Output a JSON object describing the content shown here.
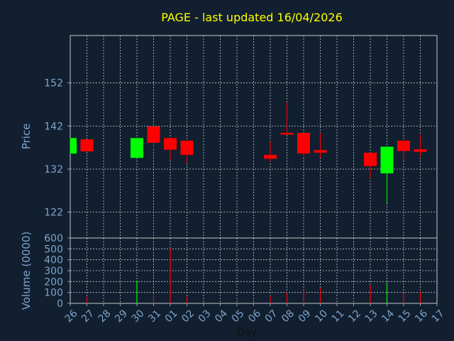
{
  "title": "PAGE - last updated 16/04/2026",
  "colors": {
    "background": "#111f30",
    "title": "#ffff00",
    "axis_text": "#7fa3cc",
    "grid": "#c8c8c8",
    "frame": "#c8c8c8",
    "up": "#00ff00",
    "down": "#ff0000"
  },
  "chart_data": [
    {
      "type": "candlestick",
      "ylabel": "Price",
      "ylim": [
        116,
        163
      ],
      "yticks": [
        122,
        132,
        142,
        152
      ],
      "grid": true,
      "x": [
        "26",
        "27",
        "28",
        "29",
        "30",
        "31",
        "01",
        "02",
        "03",
        "04",
        "05",
        "06",
        "07",
        "08",
        "09",
        "10",
        "11",
        "12",
        "13",
        "14",
        "15",
        "16",
        "17"
      ],
      "candles": [
        {
          "day": "26",
          "open": 135.6,
          "close": 139.2,
          "high": 139.2,
          "low": 135.6
        },
        {
          "day": "27",
          "open": 138.9,
          "close": 136.1,
          "high": 138.9,
          "low": 136.1
        },
        {
          "day": "30",
          "open": 134.6,
          "close": 139.2,
          "high": 139.2,
          "low": 134.6
        },
        {
          "day": "31",
          "open": 141.9,
          "close": 138.1,
          "high": 141.9,
          "low": 136.8
        },
        {
          "day": "01",
          "open": 139.2,
          "close": 136.5,
          "high": 139.2,
          "low": 134.0
        },
        {
          "day": "02",
          "open": 138.6,
          "close": 135.3,
          "high": 138.6,
          "low": 133.3
        },
        {
          "day": "07",
          "open": 135.3,
          "close": 134.4,
          "high": 138.4,
          "low": 133.8
        },
        {
          "day": "08",
          "open": 140.4,
          "close": 140.0,
          "high": 147.4,
          "low": 140.0
        },
        {
          "day": "09",
          "open": 140.4,
          "close": 135.6,
          "high": 140.4,
          "low": 134.8
        },
        {
          "day": "10",
          "open": 136.4,
          "close": 135.8,
          "high": 140.4,
          "low": 134.6
        },
        {
          "day": "13",
          "open": 135.8,
          "close": 132.7,
          "high": 135.8,
          "low": 129.8
        },
        {
          "day": "14",
          "open": 131.0,
          "close": 137.2,
          "high": 137.2,
          "low": 124.0
        },
        {
          "day": "15",
          "open": 138.6,
          "close": 136.2,
          "high": 138.6,
          "low": 134.0
        },
        {
          "day": "16",
          "open": 136.6,
          "close": 136.0,
          "high": 140.0,
          "low": 134.8
        }
      ]
    },
    {
      "type": "bar",
      "ylabel": "Volume (0000)",
      "xlabel": "Day",
      "ylim": [
        0,
        600
      ],
      "yticks": [
        0,
        100,
        200,
        300,
        400,
        500,
        600
      ],
      "x": [
        "26",
        "27",
        "28",
        "29",
        "30",
        "31",
        "01",
        "02",
        "03",
        "04",
        "05",
        "06",
        "07",
        "08",
        "09",
        "10",
        "11",
        "12",
        "13",
        "14",
        "15",
        "16",
        "17"
      ],
      "bars": [
        {
          "day": "27",
          "value": 60,
          "dir": "down"
        },
        {
          "day": "30",
          "value": 210,
          "dir": "up"
        },
        {
          "day": "31",
          "value": 90,
          "dir": "down"
        },
        {
          "day": "01",
          "value": 510,
          "dir": "down"
        },
        {
          "day": "02",
          "value": 60,
          "dir": "down"
        },
        {
          "day": "07",
          "value": 70,
          "dir": "down"
        },
        {
          "day": "08",
          "value": 100,
          "dir": "down"
        },
        {
          "day": "09",
          "value": 120,
          "dir": "down"
        },
        {
          "day": "10",
          "value": 140,
          "dir": "down"
        },
        {
          "day": "13",
          "value": 170,
          "dir": "down"
        },
        {
          "day": "14",
          "value": 190,
          "dir": "up"
        },
        {
          "day": "15",
          "value": 90,
          "dir": "down"
        },
        {
          "day": "16",
          "value": 110,
          "dir": "down"
        }
      ]
    }
  ]
}
